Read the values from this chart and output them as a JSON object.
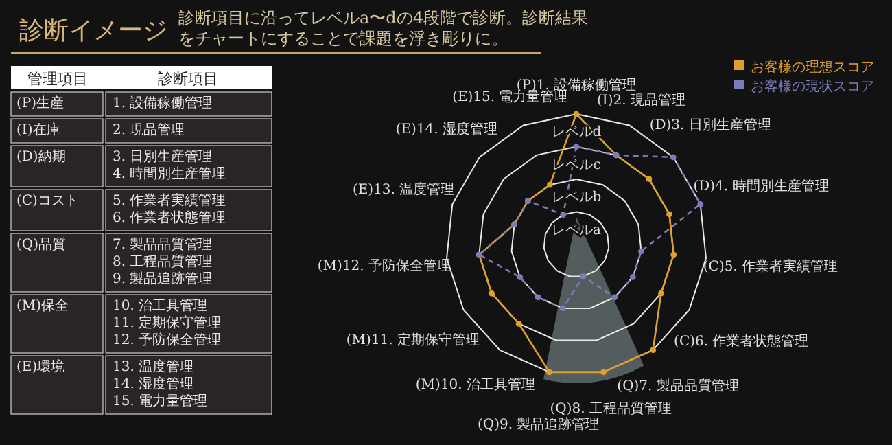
{
  "chart_data": [
    {
      "type": "radar",
      "title": "診断イメージ",
      "subtitle": "診断項目に沿ってレベルa〜dの4段階で診断。診断結果をチャートにすることで課題を浮き彫りに。",
      "categories": [
        "(P)1. 設備稼働管理",
        "(I)2. 現品管理",
        "(D)3. 日別生産管理",
        "(D)4. 時間別生産管理",
        "(C)5. 作業者実績管理",
        "(C)6. 作業者状態管理",
        "(Q)7. 製品品質管理",
        "(Q)8. 工程品質管理",
        "(Q)9. 製品追跡管理",
        "(M)10. 治工具管理",
        "(M)11. 定期保守管理",
        "(M)12. 予防保全管理",
        "(E)13. 温度管理",
        "(E)14. 湿度管理",
        "(E)15. 電力量管理"
      ],
      "series": [
        {
          "name": "お客様の理想スコア",
          "color": "#e0a030",
          "line_style": "solid",
          "values": [
            4,
            3,
            3,
            3,
            3,
            3,
            4,
            4,
            4,
            3,
            3,
            3,
            2,
            2,
            2
          ]
        },
        {
          "name": "お客様の現状スコア",
          "color": "#7c7cb8",
          "line_style": "dashed",
          "values": [
            3,
            3,
            4,
            4,
            2,
            2,
            2,
            1,
            2,
            2,
            2,
            3,
            2,
            2,
            1
          ]
        }
      ],
      "ylim": [
        0,
        4
      ],
      "yticks": [
        {
          "value": 1,
          "label": "レベルa"
        },
        {
          "value": 2,
          "label": "レベルb"
        },
        {
          "value": 3,
          "label": "レベルc"
        },
        {
          "value": 4,
          "label": "レベルd"
        }
      ],
      "grid": true,
      "marker": "circle",
      "legend": "top right"
    },
    {
      "type": "other",
      "annotations": [
        "管理項目",
        "診断項目",
        "(P)生産",
        "1. 設備稼働管理",
        "(I)在庫",
        "2. 現品管理",
        "(D)納期",
        "3. 日別生産管理\n4. 時間別生産管理",
        "(C)コスト",
        "5. 作業者実績管理\n6. 作業者状態管理",
        "(Q)品質",
        "7. 製品品質管理\n8. 工程品質管理\n9. 製品追跡管理",
        "(M)保全",
        "10. 治工具管理\n11. 定期保守管理\n12. 予防保全管理",
        "(E)環境",
        "13. 温度管理\n14. 湿度管理\n15. 電力量管理"
      ]
    }
  ]
}
